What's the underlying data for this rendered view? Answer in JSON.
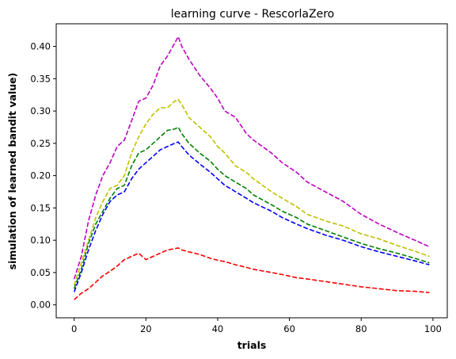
{
  "chart_data": {
    "type": "line",
    "title": "learning curve - RescorlaZero",
    "xlabel": "trials",
    "ylabel": "simulation of learned bandit value)",
    "xlim": [
      -5,
      104
    ],
    "ylim": [
      -0.02,
      0.435
    ],
    "xticks": [
      0,
      20,
      40,
      60,
      80,
      100
    ],
    "yticks": [
      0.0,
      0.05,
      0.1,
      0.15,
      0.2,
      0.25,
      0.3,
      0.35,
      0.4
    ],
    "grid": false,
    "line_style": "dashed",
    "series": [
      {
        "color": "#c000c0",
        "points": [
          [
            0,
            0.04
          ],
          [
            2,
            0.075
          ],
          [
            4,
            0.13
          ],
          [
            6,
            0.17
          ],
          [
            8,
            0.2
          ],
          [
            10,
            0.22
          ],
          [
            12,
            0.245
          ],
          [
            14,
            0.255
          ],
          [
            16,
            0.285
          ],
          [
            18,
            0.315
          ],
          [
            20,
            0.32
          ],
          [
            22,
            0.34
          ],
          [
            24,
            0.37
          ],
          [
            26,
            0.385
          ],
          [
            28,
            0.405
          ],
          [
            29,
            0.415
          ],
          [
            30,
            0.4
          ],
          [
            32,
            0.38
          ],
          [
            35,
            0.355
          ],
          [
            38,
            0.335
          ],
          [
            40,
            0.32
          ],
          [
            42,
            0.3
          ],
          [
            45,
            0.29
          ],
          [
            48,
            0.265
          ],
          [
            50,
            0.255
          ],
          [
            55,
            0.235
          ],
          [
            58,
            0.22
          ],
          [
            62,
            0.205
          ],
          [
            65,
            0.19
          ],
          [
            70,
            0.175
          ],
          [
            75,
            0.16
          ],
          [
            80,
            0.14
          ],
          [
            85,
            0.125
          ],
          [
            90,
            0.112
          ],
          [
            95,
            0.1
          ],
          [
            99,
            0.09
          ]
        ]
      },
      {
        "color": "#c0c000",
        "points": [
          [
            0,
            0.03
          ],
          [
            2,
            0.065
          ],
          [
            4,
            0.1
          ],
          [
            6,
            0.135
          ],
          [
            8,
            0.16
          ],
          [
            10,
            0.18
          ],
          [
            12,
            0.185
          ],
          [
            14,
            0.2
          ],
          [
            16,
            0.235
          ],
          [
            18,
            0.26
          ],
          [
            20,
            0.28
          ],
          [
            22,
            0.295
          ],
          [
            24,
            0.305
          ],
          [
            26,
            0.305
          ],
          [
            28,
            0.315
          ],
          [
            29,
            0.318
          ],
          [
            30,
            0.31
          ],
          [
            32,
            0.29
          ],
          [
            35,
            0.275
          ],
          [
            38,
            0.26
          ],
          [
            40,
            0.245
          ],
          [
            42,
            0.235
          ],
          [
            45,
            0.215
          ],
          [
            48,
            0.205
          ],
          [
            50,
            0.195
          ],
          [
            55,
            0.175
          ],
          [
            58,
            0.165
          ],
          [
            62,
            0.152
          ],
          [
            65,
            0.14
          ],
          [
            70,
            0.13
          ],
          [
            75,
            0.122
          ],
          [
            80,
            0.11
          ],
          [
            85,
            0.102
          ],
          [
            90,
            0.092
          ],
          [
            95,
            0.083
          ],
          [
            99,
            0.075
          ]
        ]
      },
      {
        "color": "#008000",
        "points": [
          [
            0,
            0.025
          ],
          [
            2,
            0.055
          ],
          [
            4,
            0.095
          ],
          [
            6,
            0.125
          ],
          [
            8,
            0.145
          ],
          [
            10,
            0.165
          ],
          [
            12,
            0.18
          ],
          [
            14,
            0.185
          ],
          [
            16,
            0.215
          ],
          [
            18,
            0.235
          ],
          [
            20,
            0.24
          ],
          [
            22,
            0.25
          ],
          [
            24,
            0.26
          ],
          [
            26,
            0.27
          ],
          [
            28,
            0.272
          ],
          [
            29,
            0.275
          ],
          [
            30,
            0.265
          ],
          [
            32,
            0.25
          ],
          [
            35,
            0.235
          ],
          [
            38,
            0.222
          ],
          [
            40,
            0.21
          ],
          [
            42,
            0.2
          ],
          [
            45,
            0.19
          ],
          [
            48,
            0.18
          ],
          [
            50,
            0.17
          ],
          [
            55,
            0.155
          ],
          [
            58,
            0.145
          ],
          [
            62,
            0.135
          ],
          [
            65,
            0.125
          ],
          [
            70,
            0.115
          ],
          [
            75,
            0.105
          ],
          [
            80,
            0.095
          ],
          [
            85,
            0.087
          ],
          [
            90,
            0.08
          ],
          [
            95,
            0.072
          ],
          [
            99,
            0.065
          ]
        ]
      },
      {
        "color": "#0000ff",
        "points": [
          [
            0,
            0.02
          ],
          [
            2,
            0.05
          ],
          [
            4,
            0.085
          ],
          [
            6,
            0.115
          ],
          [
            8,
            0.14
          ],
          [
            10,
            0.16
          ],
          [
            12,
            0.17
          ],
          [
            14,
            0.175
          ],
          [
            16,
            0.195
          ],
          [
            18,
            0.21
          ],
          [
            20,
            0.22
          ],
          [
            22,
            0.23
          ],
          [
            24,
            0.24
          ],
          [
            26,
            0.245
          ],
          [
            28,
            0.25
          ],
          [
            29,
            0.252
          ],
          [
            30,
            0.245
          ],
          [
            32,
            0.232
          ],
          [
            35,
            0.218
          ],
          [
            38,
            0.205
          ],
          [
            40,
            0.195
          ],
          [
            42,
            0.185
          ],
          [
            45,
            0.175
          ],
          [
            48,
            0.165
          ],
          [
            50,
            0.158
          ],
          [
            55,
            0.145
          ],
          [
            58,
            0.135
          ],
          [
            62,
            0.125
          ],
          [
            65,
            0.118
          ],
          [
            70,
            0.108
          ],
          [
            75,
            0.1
          ],
          [
            80,
            0.09
          ],
          [
            85,
            0.082
          ],
          [
            90,
            0.075
          ],
          [
            95,
            0.068
          ],
          [
            99,
            0.062
          ]
        ]
      },
      {
        "color": "#ff0000",
        "points": [
          [
            0,
            0.008
          ],
          [
            2,
            0.018
          ],
          [
            4,
            0.025
          ],
          [
            6,
            0.035
          ],
          [
            8,
            0.045
          ],
          [
            10,
            0.052
          ],
          [
            12,
            0.06
          ],
          [
            14,
            0.07
          ],
          [
            16,
            0.075
          ],
          [
            18,
            0.08
          ],
          [
            20,
            0.07
          ],
          [
            22,
            0.075
          ],
          [
            24,
            0.08
          ],
          [
            26,
            0.085
          ],
          [
            28,
            0.087
          ],
          [
            29,
            0.088
          ],
          [
            30,
            0.085
          ],
          [
            32,
            0.082
          ],
          [
            35,
            0.078
          ],
          [
            38,
            0.072
          ],
          [
            40,
            0.069
          ],
          [
            42,
            0.067
          ],
          [
            45,
            0.062
          ],
          [
            48,
            0.058
          ],
          [
            50,
            0.055
          ],
          [
            55,
            0.05
          ],
          [
            58,
            0.047
          ],
          [
            62,
            0.042
          ],
          [
            65,
            0.04
          ],
          [
            70,
            0.036
          ],
          [
            75,
            0.032
          ],
          [
            80,
            0.028
          ],
          [
            85,
            0.025
          ],
          [
            90,
            0.022
          ],
          [
            95,
            0.021
          ],
          [
            99,
            0.019
          ]
        ]
      }
    ]
  }
}
